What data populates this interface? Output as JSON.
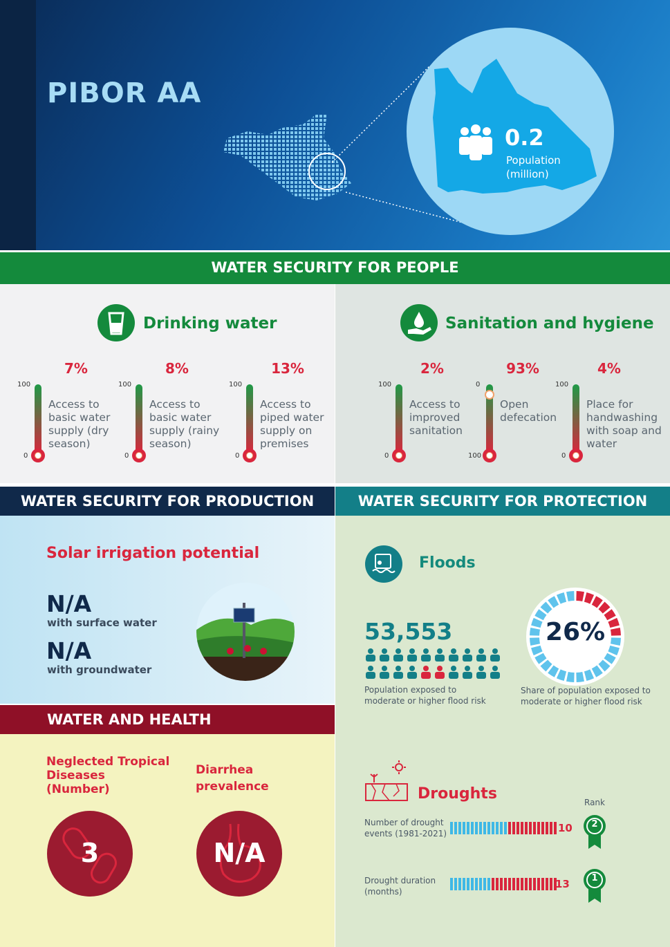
{
  "header": {
    "title": "PIBOR AA",
    "population_value": "0.2",
    "population_label": "Population (million)"
  },
  "people": {
    "bar_label": "WATER SECURITY FOR PEOPLE",
    "drinking": {
      "title": "Drinking water",
      "items": [
        {
          "pct": "7%",
          "value": 7,
          "top": "100",
          "bottom": "0",
          "label": "Access to basic water supply (dry season)"
        },
        {
          "pct": "8%",
          "value": 8,
          "top": "100",
          "bottom": "0",
          "label": "Access to basic water supply (rainy season)"
        },
        {
          "pct": "13%",
          "value": 13,
          "top": "100",
          "bottom": "0",
          "label": "Access to piped water supply on premises"
        }
      ]
    },
    "sanitation": {
      "title": "Sanitation and hygiene",
      "items": [
        {
          "pct": "2%",
          "value": 2,
          "top": "100",
          "bottom": "0",
          "label": "Access to improved sanitation"
        },
        {
          "pct": "93%",
          "value": 93,
          "top": "0",
          "bottom": "100",
          "label": "Open defecation"
        },
        {
          "pct": "4%",
          "value": 4,
          "top": "100",
          "bottom": "0",
          "label": "Place for handwashing with soap and water"
        }
      ]
    }
  },
  "production": {
    "bar_label": "WATER SECURITY FOR PRODUCTION",
    "title": "Solar irrigation potential",
    "surface_value": "N/A",
    "surface_label": "with surface water",
    "ground_value": "N/A",
    "ground_label": "with groundwater"
  },
  "protection": {
    "bar_label": "WATER SECURITY FOR PROTECTION",
    "floods_title": "Floods",
    "exposed_value": "53,553",
    "exposed_label": "Population exposed to moderate or higher flood risk",
    "share_value": "26%",
    "share_fraction": 0.26,
    "share_label": "Share of population exposed to moderate or higher flood risk",
    "droughts_title": "Droughts",
    "rank_label": "Rank",
    "drought_events": {
      "label": "Number of drought events (1981-2021)",
      "value": "10",
      "rank": "2"
    },
    "drought_duration": {
      "label": "Drought duration (months)",
      "value": "13",
      "rank": "1"
    }
  },
  "health": {
    "bar_label": "WATER AND HEALTH",
    "ntd_label": "Neglected Tropical Diseases (Number)",
    "ntd_value": "3",
    "diarrhea_label": "Diarrhea prevalence",
    "diarrhea_value": "N/A"
  },
  "colors": {
    "green": "#148a3c",
    "red": "#d9263d",
    "navy": "#10294a",
    "teal": "#137f88",
    "maroon": "#8f1027",
    "light_blue": "#9dd8f5"
  }
}
